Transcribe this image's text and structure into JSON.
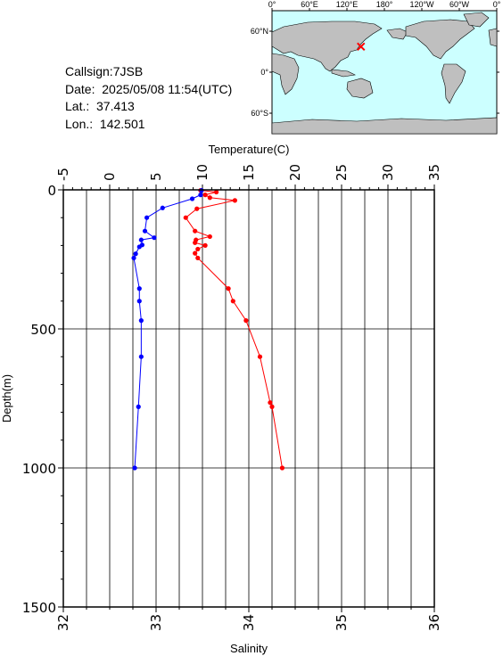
{
  "info": {
    "callsign": "Callsign:7JSB",
    "date": "Date:  2025/05/08 11:54(UTC)",
    "lat": "Lat.:  37.413",
    "lon": "Lon.:  142.501"
  },
  "map": {
    "lon_labels": [
      "0°",
      "60°E",
      "120°E",
      "180°",
      "120°W",
      "60°W",
      "0°"
    ],
    "lat_labels": [
      "60°N",
      "0°",
      "60°S"
    ],
    "ocean_color": "#ccffff",
    "land_color": "#bfbfbf",
    "marker_color": "#ff0000",
    "marker": {
      "lat": 37.413,
      "lon": 142.501
    }
  },
  "chart_data": {
    "type": "line",
    "ylabel": "Depth(m)",
    "y_ticks": [
      "0",
      "500",
      "1000",
      "1500"
    ],
    "ylim": [
      0,
      1500
    ],
    "y_inverted": true,
    "grid": true,
    "x_top": {
      "label": "Temperature(C)",
      "ticks": [
        "-5",
        "0",
        "5",
        "10",
        "15",
        "20",
        "25",
        "30",
        "35"
      ],
      "lim": [
        -5,
        35
      ]
    },
    "x_bottom": {
      "label": "Salinity",
      "ticks": [
        "32",
        "33",
        "34",
        "35",
        "36"
      ],
      "lim": [
        32,
        36
      ]
    },
    "series": [
      {
        "axis": "top",
        "color": "#ff0000",
        "points": [
          [
            9.8,
            2
          ],
          [
            11.5,
            8
          ],
          [
            10.3,
            18
          ],
          [
            10.8,
            28
          ],
          [
            13.5,
            38
          ],
          [
            9.4,
            68
          ],
          [
            8.2,
            100
          ],
          [
            9.2,
            148
          ],
          [
            10.8,
            168
          ],
          [
            9.3,
            180
          ],
          [
            9.2,
            190
          ],
          [
            10.3,
            200
          ],
          [
            9.5,
            213
          ],
          [
            9.2,
            228
          ],
          [
            9.5,
            245
          ],
          [
            12.8,
            355
          ],
          [
            13.3,
            400
          ],
          [
            14.7,
            470
          ],
          [
            16.2,
            600
          ],
          [
            17.3,
            765
          ],
          [
            17.5,
            780
          ],
          [
            18.6,
            1000
          ]
        ]
      },
      {
        "axis": "bottom",
        "color": "#0000ff",
        "points": [
          [
            33.49,
            2
          ],
          [
            33.48,
            18
          ],
          [
            33.39,
            32
          ],
          [
            33.07,
            65
          ],
          [
            32.9,
            100
          ],
          [
            32.88,
            148
          ],
          [
            32.98,
            172
          ],
          [
            32.84,
            180
          ],
          [
            32.85,
            198
          ],
          [
            32.82,
            205
          ],
          [
            32.78,
            230
          ],
          [
            32.76,
            245
          ],
          [
            32.82,
            355
          ],
          [
            32.82,
            400
          ],
          [
            32.84,
            470
          ],
          [
            32.84,
            600
          ],
          [
            32.81,
            780
          ],
          [
            32.77,
            1000
          ]
        ]
      }
    ]
  }
}
